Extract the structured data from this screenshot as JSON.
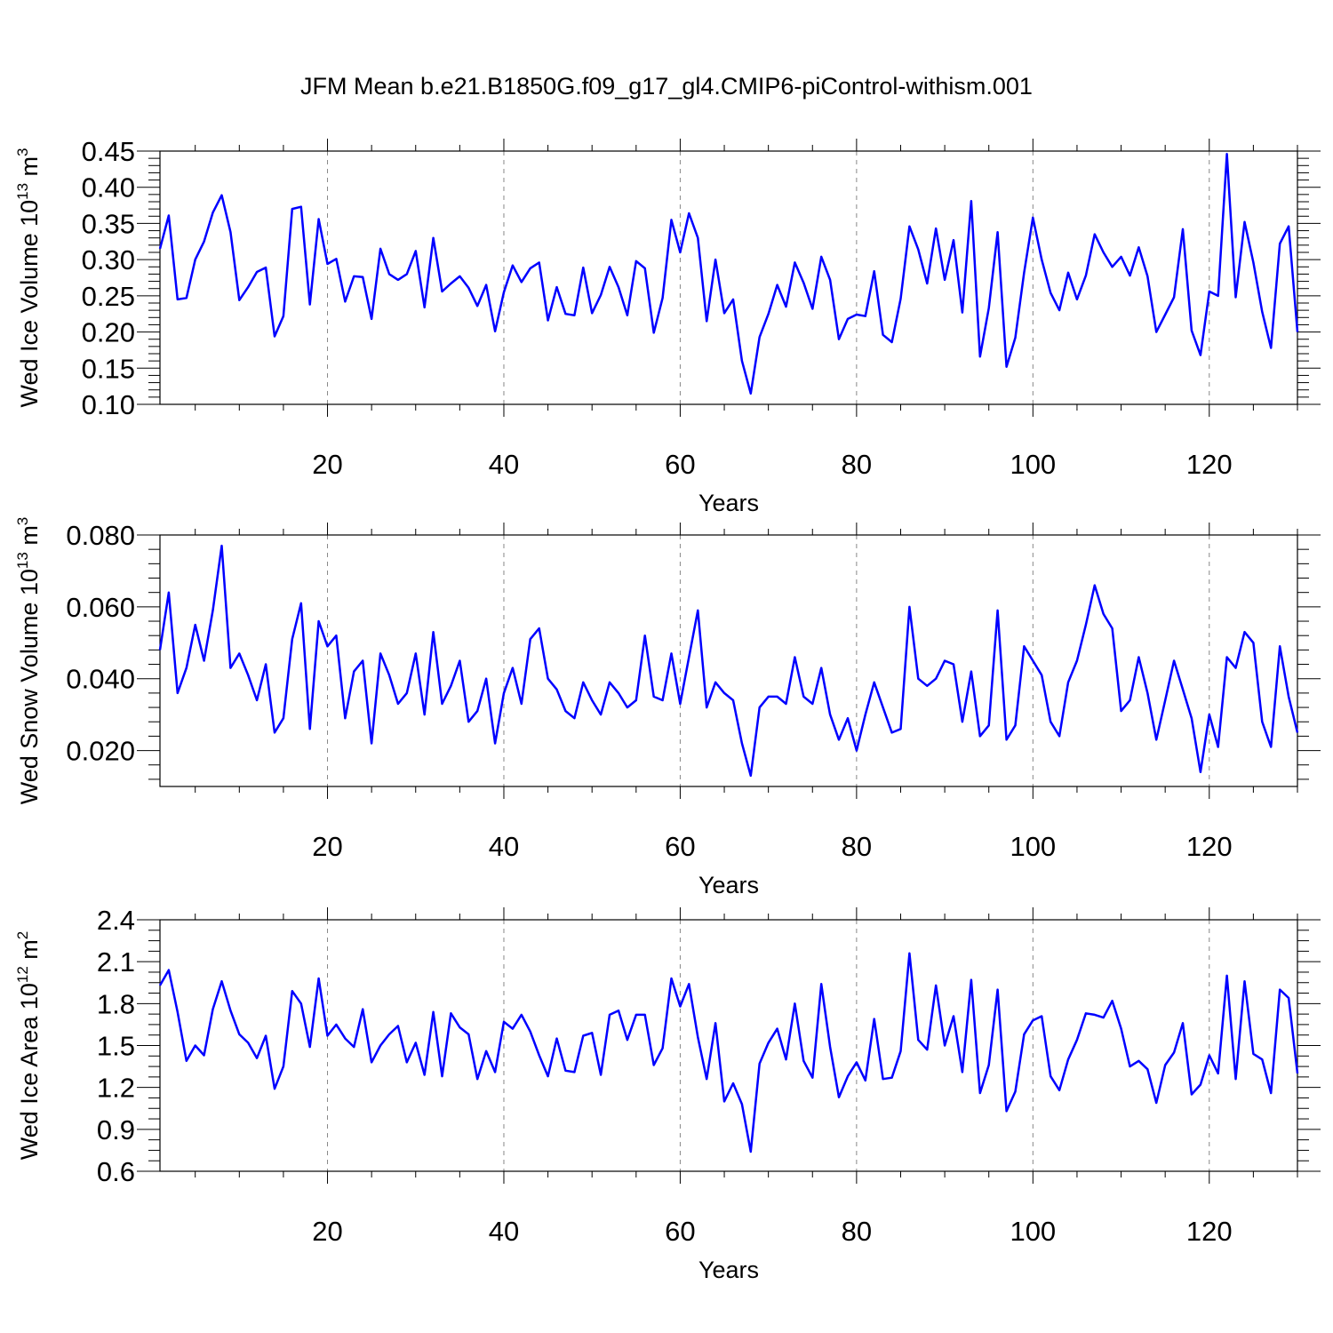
{
  "chart_data": {
    "title": "JFM Mean b.e21.B1850G.f09_g17_gl4.CMIP6-piControl-withism.001",
    "panels": [
      {
        "type": "line",
        "ylabel_main": "Wed Ice Volume 10",
        "ylabel_exp": "13",
        "ylabel_unit": " m",
        "ylabel_unit_exp": "3",
        "xlabel": "Years",
        "xlim": [
          1,
          130
        ],
        "ylim": [
          0.1,
          0.45
        ],
        "yticks": [
          0.1,
          0.15,
          0.2,
          0.25,
          0.3,
          0.35,
          0.4,
          0.45
        ],
        "yticklabels": [
          "0.10",
          "0.15",
          "0.20",
          "0.25",
          "0.30",
          "0.35",
          "0.40",
          "0.45"
        ],
        "yminor_step": 0.01,
        "xticks": [
          20,
          40,
          60,
          80,
          100,
          120
        ],
        "xticklabels": [
          "20",
          "40",
          "60",
          "80",
          "100",
          "120"
        ],
        "xminor_step": 5,
        "grid_x": true,
        "values": [
          0.315,
          0.361,
          0.245,
          0.247,
          0.3,
          0.325,
          0.365,
          0.389,
          0.338,
          0.244,
          0.262,
          0.283,
          0.289,
          0.194,
          0.222,
          0.37,
          0.373,
          0.238,
          0.356,
          0.294,
          0.301,
          0.242,
          0.277,
          0.276,
          0.218,
          0.315,
          0.28,
          0.272,
          0.28,
          0.312,
          0.234,
          0.33,
          0.256,
          0.267,
          0.277,
          0.261,
          0.236,
          0.265,
          0.201,
          0.255,
          0.292,
          0.269,
          0.288,
          0.296,
          0.216,
          0.262,
          0.225,
          0.223,
          0.289,
          0.226,
          0.251,
          0.29,
          0.262,
          0.223,
          0.298,
          0.288,
          0.199,
          0.247,
          0.355,
          0.31,
          0.364,
          0.33,
          0.215,
          0.3,
          0.226,
          0.245,
          0.16,
          0.115,
          0.193,
          0.225,
          0.265,
          0.235,
          0.296,
          0.268,
          0.232,
          0.304,
          0.272,
          0.19,
          0.218,
          0.224,
          0.222,
          0.284,
          0.196,
          0.186,
          0.246,
          0.346,
          0.314,
          0.267,
          0.343,
          0.272,
          0.327,
          0.227,
          0.381,
          0.166,
          0.233,
          0.338,
          0.152,
          0.192,
          0.282,
          0.358,
          0.3,
          0.254,
          0.23,
          0.282,
          0.245,
          0.278,
          0.335,
          0.31,
          0.29,
          0.304,
          0.278,
          0.317,
          0.277,
          0.2,
          0.224,
          0.248,
          0.342,
          0.202,
          0.168,
          0.256,
          0.25,
          0.446,
          0.248,
          0.352,
          0.296,
          0.228,
          0.178,
          0.322,
          0.346,
          0.2
        ]
      },
      {
        "type": "line",
        "ylabel_main": "Wed Snow Volume 10",
        "ylabel_exp": "13",
        "ylabel_unit": " m",
        "ylabel_unit_exp": "3",
        "xlabel": "Years",
        "xlim": [
          1,
          130
        ],
        "ylim": [
          0.01,
          0.08
        ],
        "yticks": [
          0.02,
          0.04,
          0.06,
          0.08
        ],
        "yticklabels": [
          "0.020",
          "0.040",
          "0.060",
          "0.080"
        ],
        "yminor_step": 0.004,
        "xticks": [
          20,
          40,
          60,
          80,
          100,
          120
        ],
        "xticklabels": [
          "20",
          "40",
          "60",
          "80",
          "100",
          "120"
        ],
        "xminor_step": 5,
        "grid_x": true,
        "values": [
          0.048,
          0.064,
          0.036,
          0.043,
          0.055,
          0.045,
          0.059,
          0.077,
          0.043,
          0.047,
          0.041,
          0.034,
          0.044,
          0.025,
          0.029,
          0.051,
          0.061,
          0.026,
          0.056,
          0.049,
          0.052,
          0.029,
          0.042,
          0.045,
          0.022,
          0.047,
          0.041,
          0.033,
          0.036,
          0.047,
          0.03,
          0.053,
          0.033,
          0.038,
          0.045,
          0.028,
          0.031,
          0.04,
          0.022,
          0.036,
          0.043,
          0.033,
          0.051,
          0.054,
          0.04,
          0.037,
          0.031,
          0.029,
          0.039,
          0.034,
          0.03,
          0.039,
          0.036,
          0.032,
          0.034,
          0.052,
          0.035,
          0.034,
          0.047,
          0.033,
          0.046,
          0.059,
          0.032,
          0.039,
          0.036,
          0.034,
          0.022,
          0.013,
          0.032,
          0.035,
          0.035,
          0.033,
          0.046,
          0.035,
          0.033,
          0.043,
          0.03,
          0.023,
          0.029,
          0.02,
          0.03,
          0.039,
          0.032,
          0.025,
          0.026,
          0.06,
          0.04,
          0.038,
          0.04,
          0.045,
          0.044,
          0.028,
          0.042,
          0.024,
          0.027,
          0.059,
          0.023,
          0.027,
          0.049,
          0.045,
          0.041,
          0.028,
          0.024,
          0.039,
          0.045,
          0.055,
          0.066,
          0.058,
          0.054,
          0.031,
          0.034,
          0.046,
          0.036,
          0.023,
          0.034,
          0.045,
          0.037,
          0.029,
          0.014,
          0.03,
          0.021,
          0.046,
          0.043,
          0.053,
          0.05,
          0.028,
          0.021,
          0.049,
          0.035,
          0.025
        ]
      },
      {
        "type": "line",
        "ylabel_main": "Wed Ice Area 10",
        "ylabel_exp": "12",
        "ylabel_unit": " m",
        "ylabel_unit_exp": "2",
        "xlabel": "Years",
        "xlim": [
          1,
          130
        ],
        "ylim": [
          0.6,
          2.4
        ],
        "yticks": [
          0.6,
          0.9,
          1.2,
          1.5,
          1.8,
          2.1,
          2.4
        ],
        "yticklabels": [
          "0.6",
          "0.9",
          "1.2",
          "1.5",
          "1.8",
          "2.1",
          "2.4"
        ],
        "yminor_step": 0.075,
        "xticks": [
          20,
          40,
          60,
          80,
          100,
          120
        ],
        "xticklabels": [
          "20",
          "40",
          "60",
          "80",
          "100",
          "120"
        ],
        "xminor_step": 5,
        "grid_x": true,
        "values": [
          1.93,
          2.04,
          1.74,
          1.39,
          1.5,
          1.43,
          1.76,
          1.96,
          1.75,
          1.58,
          1.52,
          1.41,
          1.57,
          1.19,
          1.35,
          1.89,
          1.8,
          1.49,
          1.98,
          1.57,
          1.65,
          1.55,
          1.49,
          1.76,
          1.38,
          1.5,
          1.58,
          1.64,
          1.38,
          1.52,
          1.29,
          1.74,
          1.28,
          1.73,
          1.63,
          1.58,
          1.26,
          1.46,
          1.31,
          1.67,
          1.62,
          1.72,
          1.6,
          1.43,
          1.28,
          1.55,
          1.32,
          1.31,
          1.57,
          1.59,
          1.29,
          1.72,
          1.75,
          1.54,
          1.72,
          1.72,
          1.36,
          1.48,
          1.98,
          1.78,
          1.94,
          1.56,
          1.26,
          1.66,
          1.1,
          1.23,
          1.08,
          0.74,
          1.37,
          1.52,
          1.62,
          1.4,
          1.8,
          1.39,
          1.27,
          1.94,
          1.49,
          1.13,
          1.28,
          1.38,
          1.25,
          1.69,
          1.26,
          1.27,
          1.46,
          2.16,
          1.54,
          1.47,
          1.93,
          1.5,
          1.71,
          1.31,
          1.97,
          1.16,
          1.36,
          1.9,
          1.03,
          1.17,
          1.58,
          1.68,
          1.71,
          1.28,
          1.18,
          1.4,
          1.54,
          1.73,
          1.72,
          1.7,
          1.82,
          1.62,
          1.35,
          1.39,
          1.33,
          1.09,
          1.36,
          1.45,
          1.66,
          1.15,
          1.22,
          1.43,
          1.3,
          2.0,
          1.26,
          1.96,
          1.44,
          1.4,
          1.16,
          1.9,
          1.84,
          1.3
        ]
      }
    ]
  }
}
